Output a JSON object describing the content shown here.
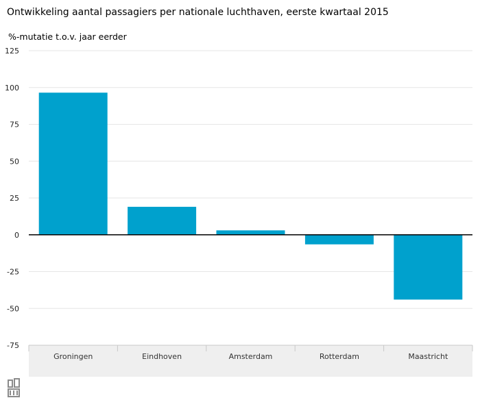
{
  "chart_data": {
    "type": "bar",
    "title": "Ontwikkeling aantal passagiers per nationale luchthaven, eerste kwartaal 2015",
    "subtitle": "%-mutatie t.o.v. jaar eerder",
    "categories": [
      "Groningen",
      "Eindhoven",
      "Amsterdam",
      "Rotterdam",
      "Maastricht"
    ],
    "values": [
      96.5,
      19,
      3,
      -6.5,
      -44
    ],
    "ylim": [
      -75,
      125
    ],
    "yticks": [
      125,
      100,
      75,
      50,
      25,
      0,
      -25,
      -50,
      -75
    ],
    "ytick_labels": [
      "125",
      "100",
      "75",
      "50",
      "25",
      "0",
      "-25",
      "-50",
      "-75"
    ],
    "xlabel": "",
    "ylabel": "",
    "grid": true,
    "bar_color": "#00a1cd",
    "category_band_color": "#efefef"
  }
}
